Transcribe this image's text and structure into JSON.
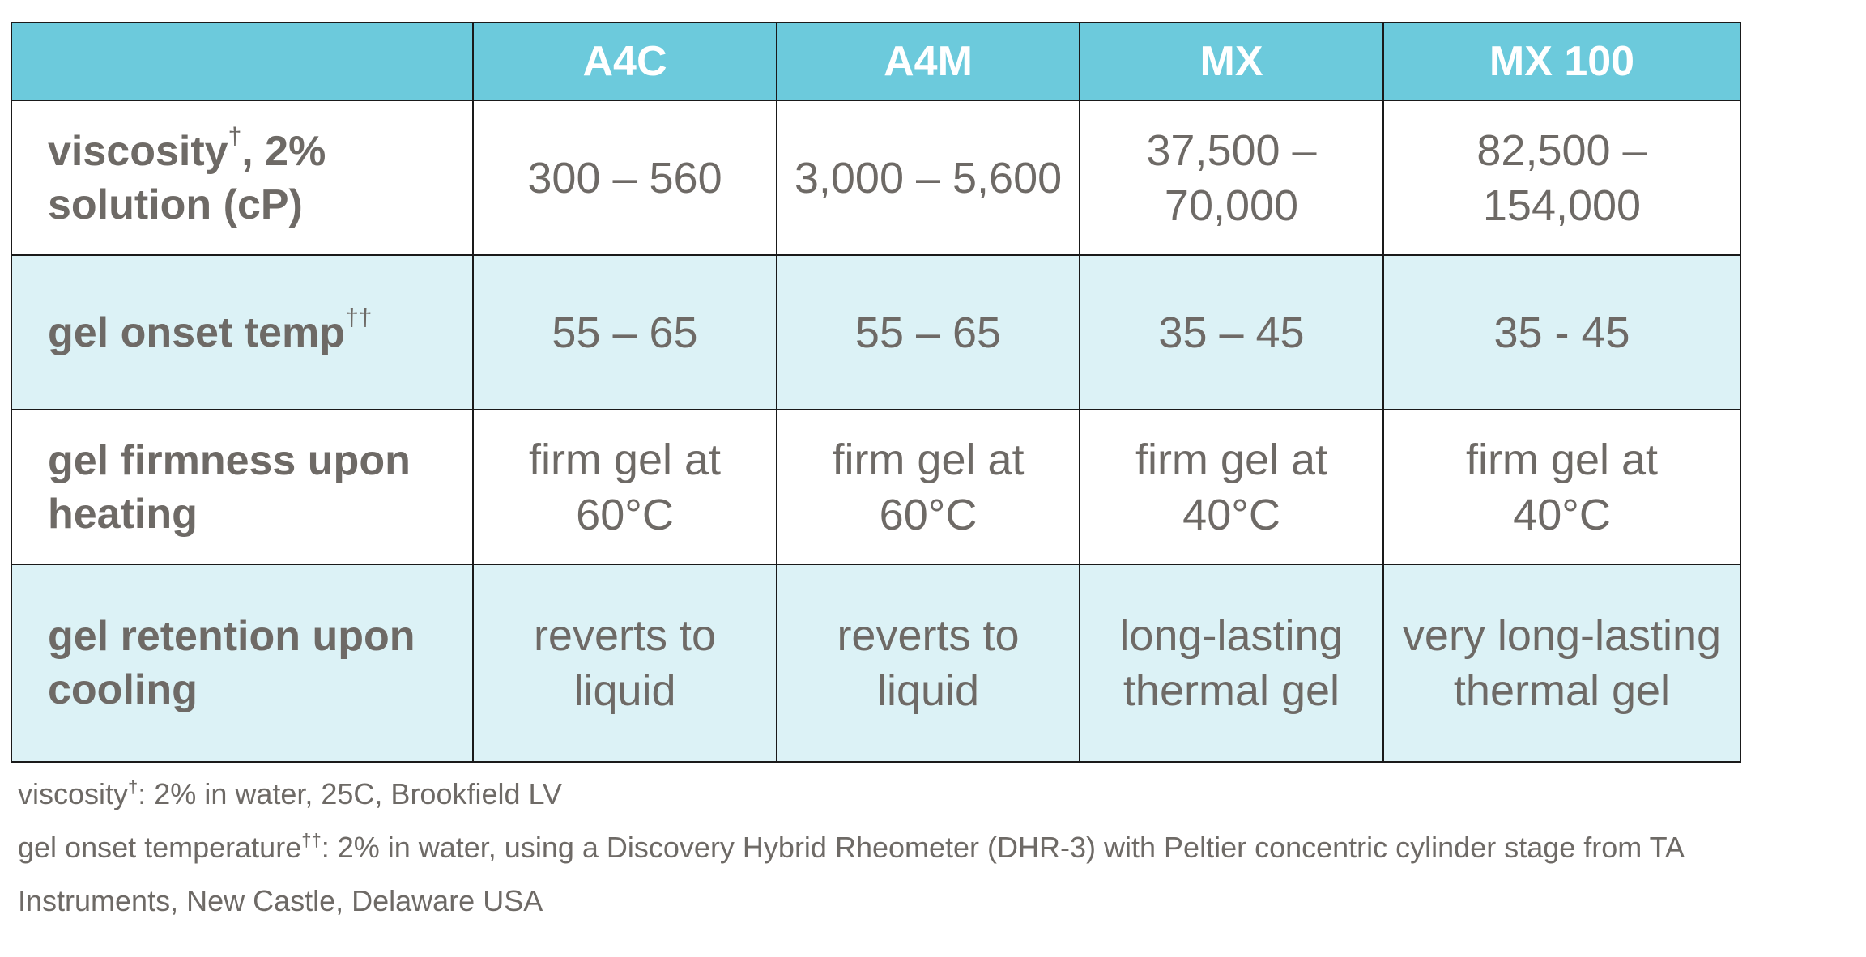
{
  "table": {
    "columns": [
      "",
      "A4C",
      "A4M",
      "MX",
      "MX 100"
    ],
    "rows": [
      {
        "label": "viscosity",
        "label_sup": "†",
        "label_rest": ", 2% solution (cP)",
        "cells": [
          "300 – 560",
          "3,000 – 5,600",
          "37,500 – 70,000",
          "82,500 – 154,000"
        ]
      },
      {
        "label": "gel onset temp",
        "label_sup": "††",
        "label_rest": "",
        "cells": [
          "55 – 65",
          "55 – 65",
          "35 – 45",
          "35 - 45"
        ]
      },
      {
        "label": "gel firmness upon heating",
        "label_sup": "",
        "label_rest": "",
        "cells": [
          "firm gel at 60°C",
          "firm gel at 60°C",
          "firm gel at 40°C",
          "firm gel at 40°C"
        ]
      },
      {
        "label": "gel retention upon cooling",
        "label_sup": "",
        "label_rest": "",
        "cells": [
          "reverts to liquid",
          "reverts to liquid",
          "long-lasting thermal gel",
          "very long-lasting thermal gel"
        ]
      }
    ]
  },
  "notes": [
    {
      "term": "viscosity",
      "sup": "†",
      "text": ": 2% in water, 25C, Brookfield LV"
    },
    {
      "term": "gel onset temperature",
      "sup": "††",
      "text": ": 2% in water, using a Discovery Hybrid Rheometer (DHR-3) with Peltier concentric cylinder stage from TA Instruments, New Castle, Delaware USA"
    }
  ],
  "colors": {
    "header_bg": "#6ccadc",
    "row_tint": "#dcf2f6",
    "text": "#6e6a66",
    "border": "#1a1a1a"
  }
}
